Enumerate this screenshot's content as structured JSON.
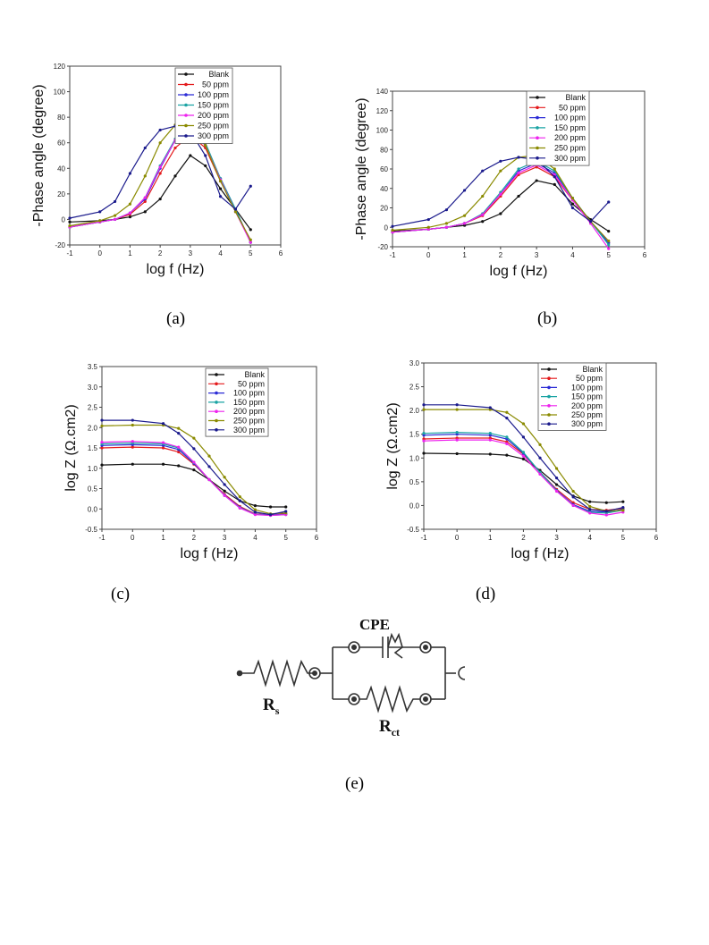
{
  "captions": {
    "a": "(a)",
    "b": "(b)",
    "c": "(c)",
    "d": "(d)",
    "e": "(e)"
  },
  "legend_labels": [
    "Blank",
    "50 ppm",
    "100 ppm",
    "150 ppm",
    "200 ppm",
    "250 ppm",
    "300 ppm"
  ],
  "series_colors": {
    "Blank": "#111111",
    "50 ppm": "#e41a1c",
    "100 ppm": "#2b2bd6",
    "150 ppm": "#1aa3a3",
    "200 ppm": "#ee22ee",
    "250 ppm": "#8a8a00",
    "300 ppm": "#1a1a8c"
  },
  "circuit": {
    "cpe": "CPE",
    "rs_main": "R",
    "rs_sub": "s",
    "rct_main": "R",
    "rct_sub": "ct"
  },
  "chart_data": [
    {
      "id": "a",
      "type": "line",
      "xlabel": "log f (Hz)",
      "ylabel": "-Phase angle (degree)",
      "xlim": [
        -1,
        6
      ],
      "ylim": [
        -20,
        120
      ],
      "xticks": [
        -1,
        0,
        1,
        2,
        3,
        4,
        5,
        6
      ],
      "yticks": [
        -20,
        0,
        20,
        40,
        60,
        80,
        100,
        120
      ],
      "legend": "top-right",
      "series": [
        {
          "name": "Blank",
          "x": [
            -1,
            0,
            0.5,
            1,
            1.5,
            2,
            2.5,
            3,
            3.5,
            4,
            4.5,
            5
          ],
          "y": [
            -2,
            -1,
            0,
            2,
            6,
            16,
            34,
            50,
            42,
            24,
            8,
            -8
          ]
        },
        {
          "name": "50 ppm",
          "x": [
            -1,
            0,
            0.5,
            1,
            1.5,
            2,
            2.5,
            3,
            3.5,
            4,
            4.5,
            5
          ],
          "y": [
            -6,
            -2,
            0,
            4,
            14,
            36,
            56,
            66,
            56,
            30,
            8,
            -18
          ]
        },
        {
          "name": "100 ppm",
          "x": [
            -1,
            0,
            0.5,
            1,
            1.5,
            2,
            2.5,
            3,
            3.5,
            4,
            4.5,
            5
          ],
          "y": [
            -6,
            -2,
            0,
            5,
            16,
            40,
            62,
            70,
            58,
            32,
            8,
            -18
          ]
        },
        {
          "name": "150 ppm",
          "x": [
            -1,
            0,
            0.5,
            1,
            1.5,
            2,
            2.5,
            3,
            3.5,
            4,
            4.5,
            5
          ],
          "y": [
            -6,
            -2,
            0,
            5,
            17,
            42,
            63,
            71,
            60,
            32,
            8,
            -18
          ]
        },
        {
          "name": "200 ppm",
          "x": [
            -1,
            0,
            0.5,
            1,
            1.5,
            2,
            2.5,
            3,
            3.5,
            4,
            4.5,
            5
          ],
          "y": [
            -6,
            -2,
            0,
            5,
            17,
            41,
            62,
            69,
            58,
            31,
            6,
            -18
          ]
        },
        {
          "name": "250 ppm",
          "x": [
            -1,
            0,
            0.5,
            1,
            1.5,
            2,
            2.5,
            3,
            3.5,
            4,
            4.5,
            5
          ],
          "y": [
            -5,
            -1,
            3,
            12,
            34,
            60,
            74,
            74,
            58,
            30,
            6,
            -16
          ]
        },
        {
          "name": "300 ppm",
          "x": [
            -1,
            0,
            0.5,
            1,
            1.5,
            2,
            2.5,
            3,
            3.5,
            4,
            4.5,
            5
          ],
          "y": [
            1,
            6,
            14,
            36,
            56,
            70,
            73,
            69,
            50,
            18,
            8,
            26
          ]
        }
      ]
    },
    {
      "id": "b",
      "type": "line",
      "xlabel": "log f (Hz)",
      "ylabel": "-Phase angle (degree)",
      "xlim": [
        -1,
        6
      ],
      "ylim": [
        -20,
        140
      ],
      "xticks": [
        -1,
        0,
        1,
        2,
        3,
        4,
        5,
        6
      ],
      "yticks": [
        -20,
        0,
        20,
        40,
        60,
        80,
        100,
        120,
        140
      ],
      "legend": "top-right",
      "series": [
        {
          "name": "Blank",
          "x": [
            -1,
            0,
            0.5,
            1,
            1.5,
            2,
            2.5,
            3,
            3.5,
            4,
            4.5,
            5
          ],
          "y": [
            -4,
            -2,
            0,
            2,
            6,
            14,
            32,
            48,
            44,
            24,
            8,
            -4
          ]
        },
        {
          "name": "50 ppm",
          "x": [
            -1,
            0,
            0.5,
            1,
            1.5,
            2,
            2.5,
            3,
            3.5,
            4,
            4.5,
            5
          ],
          "y": [
            -5,
            -2,
            0,
            4,
            12,
            32,
            54,
            62,
            52,
            28,
            6,
            -16
          ]
        },
        {
          "name": "100 ppm",
          "x": [
            -1,
            0,
            0.5,
            1,
            1.5,
            2,
            2.5,
            3,
            3.5,
            4,
            4.5,
            5
          ],
          "y": [
            -5,
            -2,
            0,
            4,
            13,
            34,
            58,
            66,
            56,
            30,
            6,
            -16
          ]
        },
        {
          "name": "150 ppm",
          "x": [
            -1,
            0,
            0.5,
            1,
            1.5,
            2,
            2.5,
            3,
            3.5,
            4,
            4.5,
            5
          ],
          "y": [
            -5,
            -2,
            0,
            4,
            14,
            36,
            60,
            68,
            58,
            30,
            6,
            -18
          ]
        },
        {
          "name": "200 ppm",
          "x": [
            -1,
            0,
            0.5,
            1,
            1.5,
            2,
            2.5,
            3,
            3.5,
            4,
            4.5,
            5
          ],
          "y": [
            -5,
            -2,
            0,
            4,
            13,
            34,
            56,
            64,
            54,
            28,
            4,
            -22
          ]
        },
        {
          "name": "250 ppm",
          "x": [
            -1,
            0,
            0.5,
            1,
            1.5,
            2,
            2.5,
            3,
            3.5,
            4,
            4.5,
            5
          ],
          "y": [
            -3,
            0,
            4,
            12,
            32,
            58,
            72,
            74,
            60,
            30,
            6,
            -14
          ]
        },
        {
          "name": "300 ppm",
          "x": [
            -1,
            0,
            0.5,
            1,
            1.5,
            2,
            2.5,
            3,
            3.5,
            4,
            4.5,
            5
          ],
          "y": [
            1,
            8,
            18,
            38,
            58,
            68,
            72,
            70,
            52,
            20,
            6,
            26
          ]
        }
      ]
    },
    {
      "id": "c",
      "type": "line",
      "xlabel": "log f (Hz)",
      "ylabel": "log Z (Ω.cm2)",
      "xlim": [
        -1,
        6
      ],
      "ylim": [
        -0.5,
        3.5
      ],
      "xticks": [
        -1,
        0,
        1,
        2,
        3,
        4,
        5,
        6
      ],
      "yticks": [
        -0.5,
        0.0,
        0.5,
        1.0,
        1.5,
        2.0,
        2.5,
        3.0,
        3.5
      ],
      "legend": "top-right",
      "series": [
        {
          "name": "Blank",
          "x": [
            -1,
            0,
            1,
            1.5,
            2,
            2.5,
            3,
            3.5,
            4,
            4.5,
            5
          ],
          "y": [
            1.08,
            1.1,
            1.1,
            1.06,
            0.96,
            0.72,
            0.44,
            0.2,
            0.08,
            0.05,
            0.05
          ]
        },
        {
          "name": "50 ppm",
          "x": [
            -1,
            0,
            1,
            1.5,
            2,
            2.5,
            3,
            3.5,
            4,
            4.5,
            5
          ],
          "y": [
            1.5,
            1.52,
            1.5,
            1.4,
            1.1,
            0.72,
            0.36,
            0.06,
            -0.12,
            -0.15,
            -0.12
          ]
        },
        {
          "name": "100 ppm",
          "x": [
            -1,
            0,
            1,
            1.5,
            2,
            2.5,
            3,
            3.5,
            4,
            4.5,
            5
          ],
          "y": [
            1.56,
            1.58,
            1.56,
            1.46,
            1.12,
            0.72,
            0.34,
            0.04,
            -0.13,
            -0.15,
            -0.13
          ]
        },
        {
          "name": "150 ppm",
          "x": [
            -1,
            0,
            1,
            1.5,
            2,
            2.5,
            3,
            3.5,
            4,
            4.5,
            5
          ],
          "y": [
            1.6,
            1.62,
            1.6,
            1.5,
            1.14,
            0.72,
            0.33,
            0.03,
            -0.13,
            -0.16,
            -0.14
          ]
        },
        {
          "name": "200 ppm",
          "x": [
            -1,
            0,
            1,
            1.5,
            2,
            2.5,
            3,
            3.5,
            4,
            4.5,
            5
          ],
          "y": [
            1.64,
            1.66,
            1.63,
            1.52,
            1.15,
            0.72,
            0.33,
            0.02,
            -0.14,
            -0.16,
            -0.14
          ]
        },
        {
          "name": "250 ppm",
          "x": [
            -1,
            0,
            1,
            1.5,
            2,
            2.5,
            3,
            3.5,
            4,
            4.5,
            5
          ],
          "y": [
            2.04,
            2.06,
            2.06,
            1.98,
            1.74,
            1.3,
            0.78,
            0.3,
            -0.02,
            -0.12,
            -0.1
          ]
        },
        {
          "name": "300 ppm",
          "x": [
            -1,
            0,
            1,
            1.5,
            2,
            2.5,
            3,
            3.5,
            4,
            4.5,
            5
          ],
          "y": [
            2.18,
            2.18,
            2.1,
            1.86,
            1.48,
            1.04,
            0.6,
            0.2,
            -0.08,
            -0.14,
            -0.06
          ]
        }
      ]
    },
    {
      "id": "d",
      "type": "line",
      "xlabel": "log f (Hz)",
      "ylabel": "log Z (Ω.cm2)",
      "xlim": [
        -1,
        6
      ],
      "ylim": [
        -0.5,
        3.0
      ],
      "xticks": [
        -1,
        0,
        1,
        2,
        3,
        4,
        5,
        6
      ],
      "yticks": [
        -0.5,
        0.0,
        0.5,
        1.0,
        1.5,
        2.0,
        2.5,
        3.0
      ],
      "legend": "top-right",
      "series": [
        {
          "name": "Blank",
          "x": [
            -1,
            0,
            1,
            1.5,
            2,
            2.5,
            3,
            3.5,
            4,
            4.5,
            5
          ],
          "y": [
            1.1,
            1.09,
            1.08,
            1.06,
            0.98,
            0.74,
            0.44,
            0.2,
            0.08,
            0.06,
            0.08
          ]
        },
        {
          "name": "50 ppm",
          "x": [
            -1,
            0,
            1,
            1.5,
            2,
            2.5,
            3,
            3.5,
            4,
            4.5,
            5
          ],
          "y": [
            1.4,
            1.42,
            1.42,
            1.34,
            1.08,
            0.7,
            0.34,
            0.06,
            -0.08,
            -0.1,
            -0.06
          ]
        },
        {
          "name": "100 ppm",
          "x": [
            -1,
            0,
            1,
            1.5,
            2,
            2.5,
            3,
            3.5,
            4,
            4.5,
            5
          ],
          "y": [
            1.48,
            1.5,
            1.48,
            1.4,
            1.1,
            0.7,
            0.32,
            0.02,
            -0.12,
            -0.14,
            -0.08
          ]
        },
        {
          "name": "150 ppm",
          "x": [
            -1,
            0,
            1,
            1.5,
            2,
            2.5,
            3,
            3.5,
            4,
            4.5,
            5
          ],
          "y": [
            1.52,
            1.54,
            1.52,
            1.44,
            1.12,
            0.7,
            0.31,
            0.0,
            -0.14,
            -0.16,
            -0.1
          ]
        },
        {
          "name": "200 ppm",
          "x": [
            -1,
            0,
            1,
            1.5,
            2,
            2.5,
            3,
            3.5,
            4,
            4.5,
            5
          ],
          "y": [
            1.36,
            1.38,
            1.38,
            1.3,
            1.04,
            0.66,
            0.3,
            0.0,
            -0.16,
            -0.2,
            -0.14
          ]
        },
        {
          "name": "250 ppm",
          "x": [
            -1,
            0,
            1,
            1.5,
            2,
            2.5,
            3,
            3.5,
            4,
            4.5,
            5
          ],
          "y": [
            2.02,
            2.02,
            2.02,
            1.96,
            1.72,
            1.28,
            0.78,
            0.3,
            -0.02,
            -0.12,
            -0.1
          ]
        },
        {
          "name": "300 ppm",
          "x": [
            -1,
            0,
            1,
            1.5,
            2,
            2.5,
            3,
            3.5,
            4,
            4.5,
            5
          ],
          "y": [
            2.12,
            2.12,
            2.06,
            1.84,
            1.44,
            1.0,
            0.58,
            0.18,
            -0.08,
            -0.12,
            -0.04
          ]
        }
      ]
    }
  ]
}
